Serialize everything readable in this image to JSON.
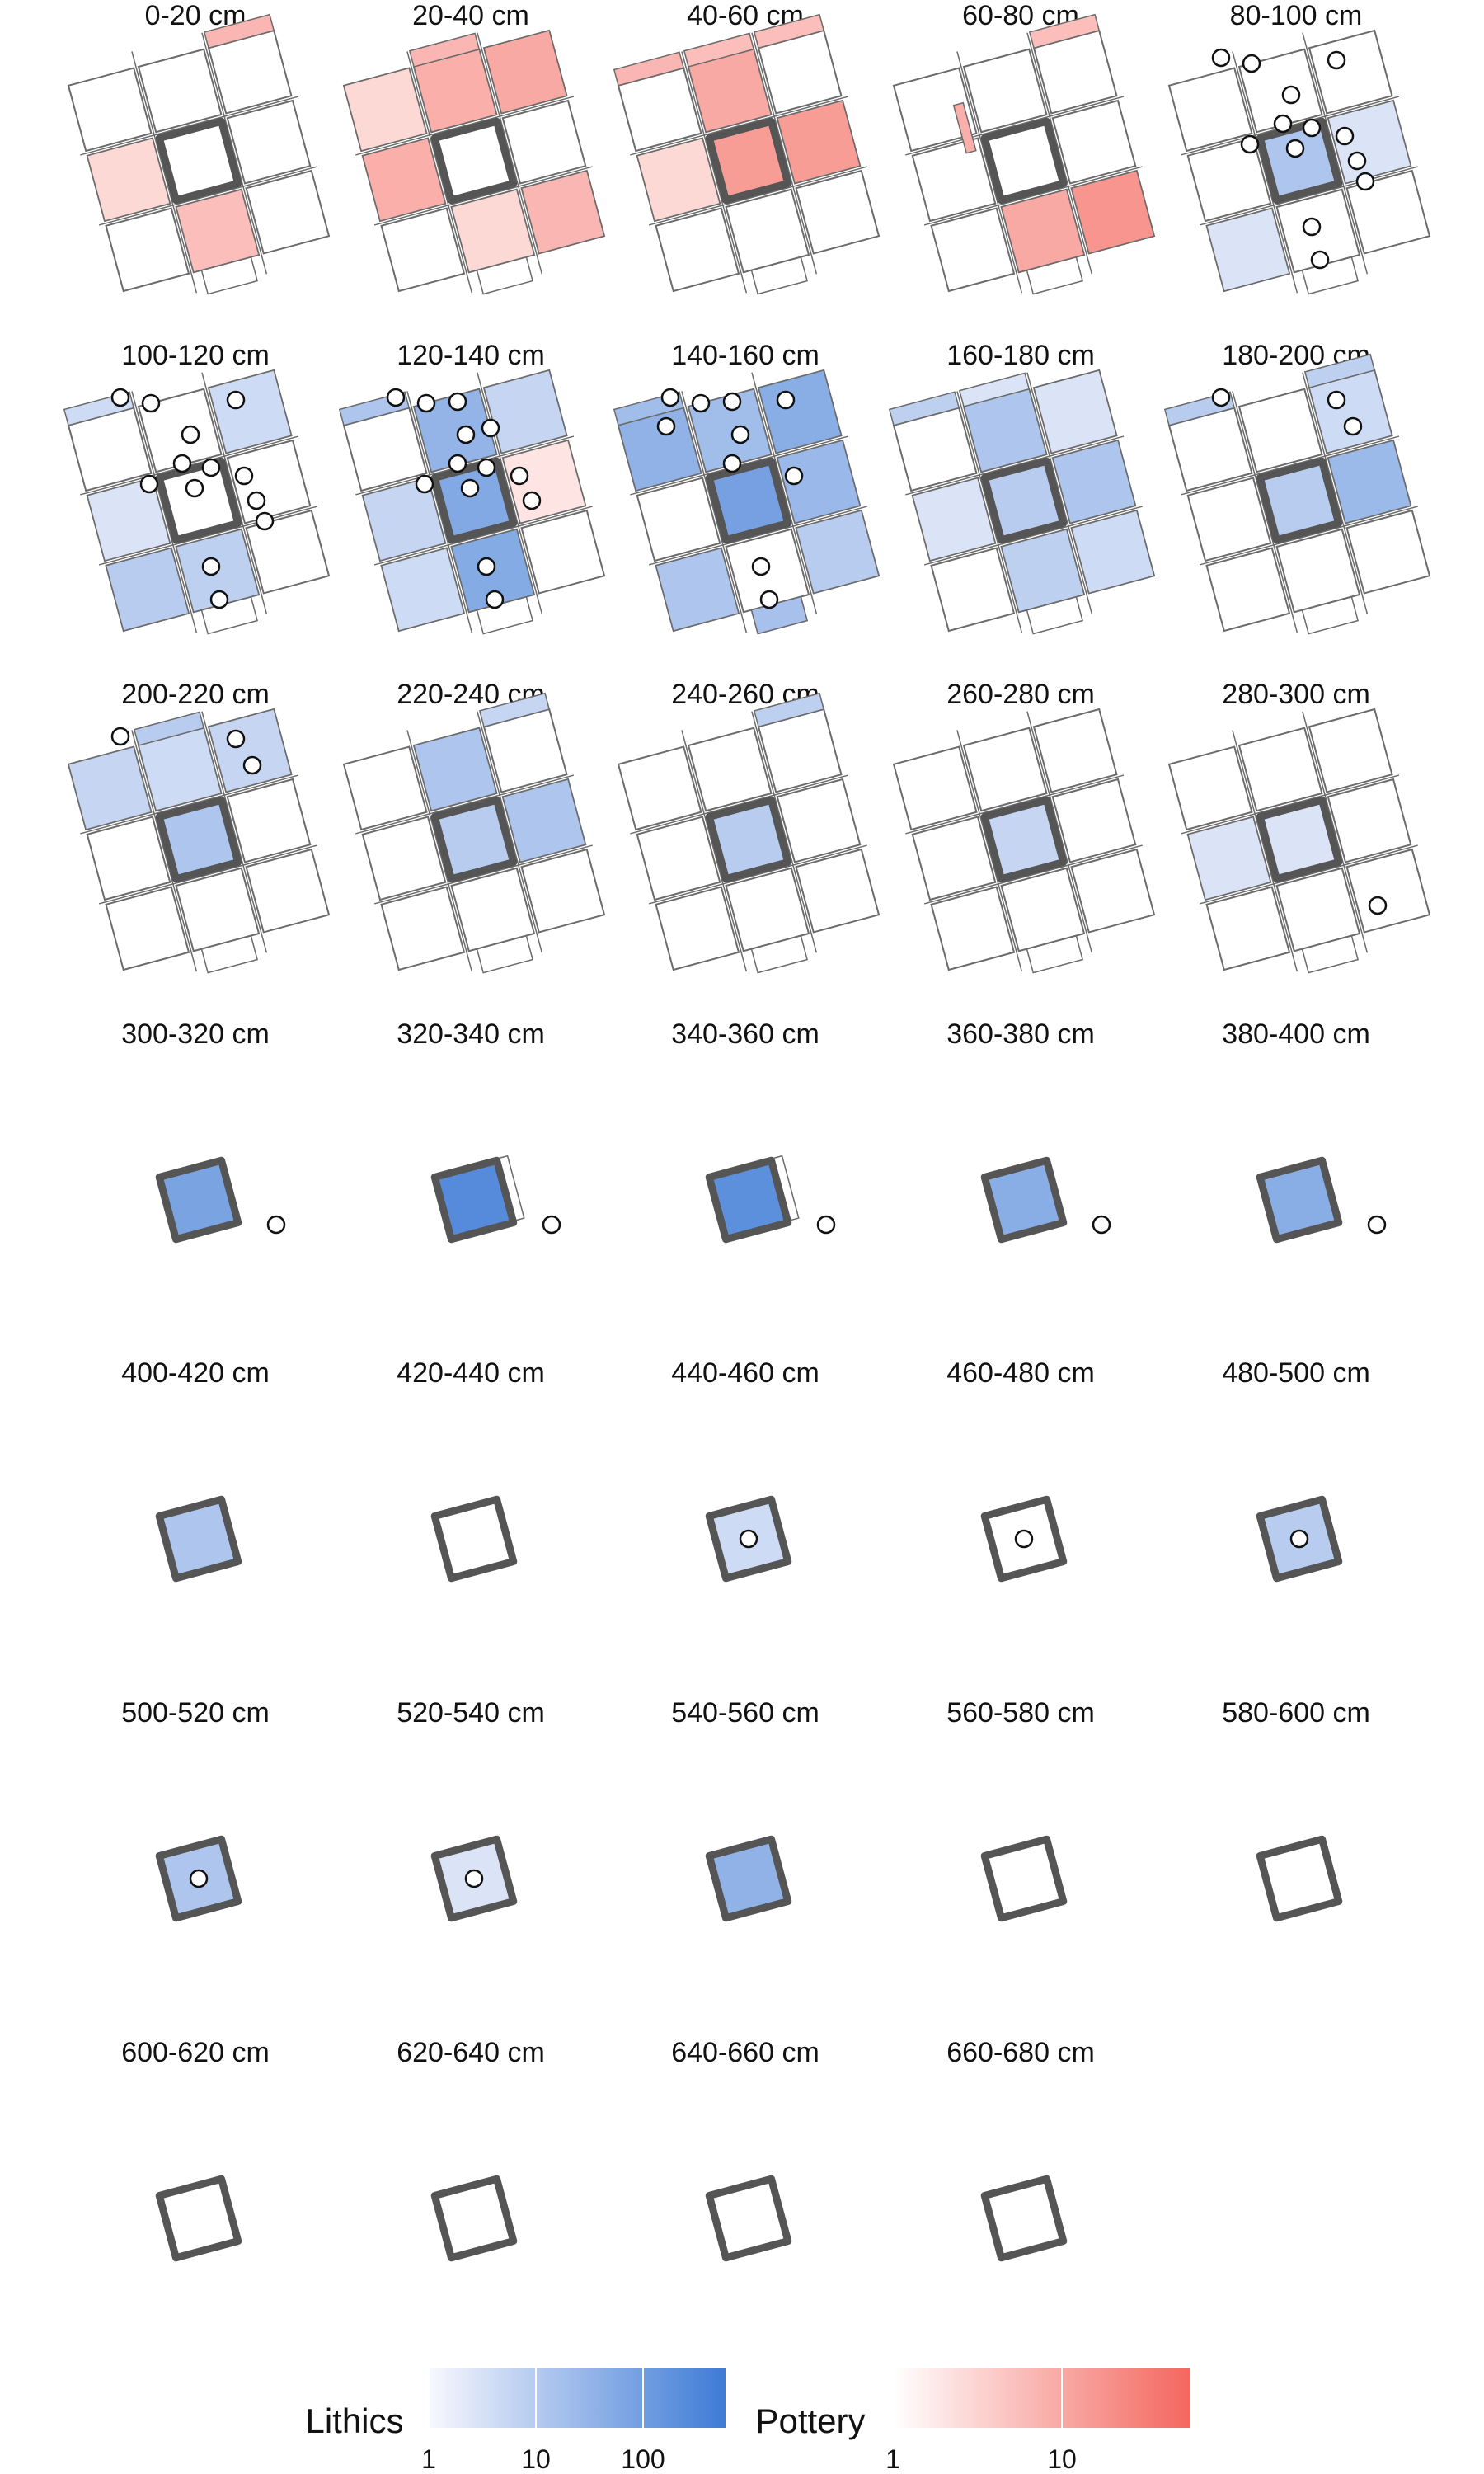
{
  "chart_data": {
    "type": "heatmap",
    "description_kind": "small multiples of excavation-unit maps by depth",
    "colors": {
      "lithics_low": "#f2f3fb",
      "lithics_high": "#3e7bd6",
      "pottery_low": "#fff3f2",
      "pottery_high": "#f4675f",
      "outline": "#6b6b6b",
      "center_outline": "#555555"
    },
    "units_legend": {
      "lithics": {
        "label": "Lithics",
        "ticks": [
          "1",
          "10",
          "100"
        ],
        "range_log10": [
          0,
          2.4
        ]
      },
      "pottery": {
        "label": "Pottery",
        "ticks": [
          "1",
          "10"
        ],
        "range_log10": [
          0,
          1.6
        ]
      }
    },
    "panels": [
      {
        "title": "0-20 cm",
        "show_grid": true,
        "cells": [
          {
            "pos": "center-left",
            "material": "pottery",
            "value": 2
          },
          {
            "pos": "bottom-center",
            "material": "pottery",
            "value": 4
          },
          {
            "pos": "top-right-strip",
            "material": "pottery",
            "value": 5
          }
        ],
        "points": []
      },
      {
        "title": "20-40 cm",
        "show_grid": true,
        "cells": [
          {
            "pos": "top-center",
            "material": "pottery",
            "value": 6
          },
          {
            "pos": "top-right",
            "material": "pottery",
            "value": 7
          },
          {
            "pos": "top-left",
            "material": "pottery",
            "value": 2
          },
          {
            "pos": "center-left",
            "material": "pottery",
            "value": 6
          },
          {
            "pos": "bottom-center",
            "material": "pottery",
            "value": 2
          },
          {
            "pos": "bottom-right",
            "material": "pottery",
            "value": 5
          },
          {
            "pos": "top-center-strip",
            "material": "pottery",
            "value": 5
          }
        ],
        "points": []
      },
      {
        "title": "40-60 cm",
        "show_grid": true,
        "cells": [
          {
            "pos": "top-left-strip",
            "material": "pottery",
            "value": 5
          },
          {
            "pos": "top-center-strip",
            "material": "pottery",
            "value": 4
          },
          {
            "pos": "top-right-strip",
            "material": "pottery",
            "value": 4
          },
          {
            "pos": "top-center",
            "material": "pottery",
            "value": 7
          },
          {
            "pos": "center",
            "material": "pottery",
            "value": 10
          },
          {
            "pos": "center-right",
            "material": "pottery",
            "value": 10
          },
          {
            "pos": "center-left",
            "material": "pottery",
            "value": 2
          }
        ],
        "points": []
      },
      {
        "title": "60-80 cm",
        "show_grid": true,
        "cells": [
          {
            "pos": "top-right-strip",
            "material": "pottery",
            "value": 4
          },
          {
            "pos": "bottom-center",
            "material": "pottery",
            "value": 7
          },
          {
            "pos": "bottom-right",
            "material": "pottery",
            "value": 12
          },
          {
            "pos": "left-vertical-strip",
            "material": "pottery",
            "value": 6
          }
        ],
        "points": []
      },
      {
        "title": "80-100 cm",
        "show_grid": true,
        "cells": [
          {
            "pos": "center",
            "material": "lithics",
            "value": 8
          },
          {
            "pos": "center-right",
            "material": "lithics",
            "value": 2
          },
          {
            "pos": "bottom-left",
            "material": "lithics",
            "value": 2
          }
        ],
        "points": [
          "top-left",
          "top-left",
          "top-center",
          "top-right",
          "center-left",
          "center",
          "center",
          "center",
          "center-right",
          "center-right",
          "center-right",
          "bottom-center",
          "bottom-center"
        ]
      },
      {
        "title": "100-120 cm",
        "show_grid": true,
        "cells": [
          {
            "pos": "top-left-strip",
            "material": "lithics",
            "value": 3
          },
          {
            "pos": "top-right",
            "material": "lithics",
            "value": 3
          },
          {
            "pos": "center-left",
            "material": "lithics",
            "value": 2
          },
          {
            "pos": "bottom-left",
            "material": "lithics",
            "value": 6
          },
          {
            "pos": "bottom-center",
            "material": "lithics",
            "value": 5
          }
        ],
        "points": [
          "top-left",
          "top-left",
          "top-center",
          "top-right",
          "center-left",
          "center",
          "center",
          "center",
          "center-right",
          "center-right",
          "center-right",
          "bottom-center",
          "bottom-center"
        ]
      },
      {
        "title": "120-140 cm",
        "show_grid": true,
        "cells": [
          {
            "pos": "top-left-strip",
            "material": "lithics",
            "value": 8
          },
          {
            "pos": "top-center",
            "material": "lithics",
            "value": 18
          },
          {
            "pos": "top-right",
            "material": "lithics",
            "value": 4
          },
          {
            "pos": "center",
            "material": "lithics",
            "value": 30
          },
          {
            "pos": "center-left",
            "material": "lithics",
            "value": 4
          },
          {
            "pos": "bottom-center",
            "material": "lithics",
            "value": 28
          },
          {
            "pos": "bottom-left",
            "material": "lithics",
            "value": 3
          },
          {
            "pos": "center-right",
            "material": "pottery",
            "value": 1.5
          }
        ],
        "points": [
          "top-left",
          "top-left",
          "top-left",
          "top-center",
          "top-center",
          "center-left",
          "center",
          "center",
          "center",
          "center-right",
          "center-right",
          "bottom-center",
          "bottom-center"
        ]
      },
      {
        "title": "140-160 cm",
        "show_grid": true,
        "cells": [
          {
            "pos": "top-left-strip",
            "material": "lithics",
            "value": 12
          },
          {
            "pos": "top-left",
            "material": "lithics",
            "value": 20
          },
          {
            "pos": "top-center",
            "material": "lithics",
            "value": 12
          },
          {
            "pos": "top-right",
            "material": "lithics",
            "value": 25
          },
          {
            "pos": "center",
            "material": "lithics",
            "value": 45
          },
          {
            "pos": "center-right",
            "material": "lithics",
            "value": 15
          },
          {
            "pos": "bottom-left",
            "material": "lithics",
            "value": 8
          },
          {
            "pos": "bottom-right",
            "material": "lithics",
            "value": 6
          },
          {
            "pos": "bottom-center-strip",
            "material": "lithics",
            "value": 10
          }
        ],
        "points": [
          "top-left",
          "top-left",
          "top-left",
          "top-left",
          "top-center",
          "top-right",
          "center",
          "center-right",
          "bottom-center",
          "bottom-center"
        ]
      },
      {
        "title": "160-180 cm",
        "show_grid": true,
        "cells": [
          {
            "pos": "top-left-strip",
            "material": "lithics",
            "value": 5
          },
          {
            "pos": "top-center-strip",
            "material": "lithics",
            "value": 2
          },
          {
            "pos": "top-center",
            "material": "lithics",
            "value": 8
          },
          {
            "pos": "top-right",
            "material": "lithics",
            "value": 2
          },
          {
            "pos": "center",
            "material": "lithics",
            "value": 6
          },
          {
            "pos": "center-left",
            "material": "lithics",
            "value": 2
          },
          {
            "pos": "center-right",
            "material": "lithics",
            "value": 8
          },
          {
            "pos": "bottom-center",
            "material": "lithics",
            "value": 5
          },
          {
            "pos": "bottom-right",
            "material": "lithics",
            "value": 3
          }
        ],
        "points": []
      },
      {
        "title": "180-200 cm",
        "show_grid": true,
        "cells": [
          {
            "pos": "top-left-strip",
            "material": "lithics",
            "value": 6
          },
          {
            "pos": "top-right-strip",
            "material": "lithics",
            "value": 5
          },
          {
            "pos": "top-right",
            "material": "lithics",
            "value": 3
          },
          {
            "pos": "center",
            "material": "lithics",
            "value": 6
          },
          {
            "pos": "center-right",
            "material": "lithics",
            "value": 14
          }
        ],
        "points": [
          "top-left",
          "top-right",
          "top-right"
        ]
      },
      {
        "title": "200-220 cm",
        "show_grid": true,
        "cells": [
          {
            "pos": "top-left",
            "material": "lithics",
            "value": 4
          },
          {
            "pos": "top-center",
            "material": "lithics",
            "value": 3
          },
          {
            "pos": "top-right",
            "material": "lithics",
            "value": 4
          },
          {
            "pos": "center",
            "material": "lithics",
            "value": 8
          },
          {
            "pos": "top-center-strip",
            "material": "lithics",
            "value": 6
          }
        ],
        "points": [
          "top-left",
          "top-right",
          "top-right"
        ]
      },
      {
        "title": "220-240 cm",
        "show_grid": true,
        "cells": [
          {
            "pos": "top-center",
            "material": "lithics",
            "value": 8
          },
          {
            "pos": "center",
            "material": "lithics",
            "value": 6
          },
          {
            "pos": "center-right",
            "material": "lithics",
            "value": 8
          },
          {
            "pos": "top-right-strip",
            "material": "lithics",
            "value": 4
          }
        ],
        "points": []
      },
      {
        "title": "240-260 cm",
        "show_grid": true,
        "cells": [
          {
            "pos": "top-right-strip",
            "material": "lithics",
            "value": 5
          },
          {
            "pos": "center",
            "material": "lithics",
            "value": 6
          }
        ],
        "points": []
      },
      {
        "title": "260-280 cm",
        "show_grid": true,
        "cells": [
          {
            "pos": "center",
            "material": "lithics",
            "value": 4
          }
        ],
        "points": []
      },
      {
        "title": "280-300 cm",
        "show_grid": true,
        "cells": [
          {
            "pos": "center",
            "material": "lithics",
            "value": 2
          },
          {
            "pos": "center-left",
            "material": "lithics",
            "value": 2
          }
        ],
        "points": [
          "bottom-right"
        ]
      },
      {
        "title": "300-320 cm",
        "show_grid": false,
        "center": {
          "material": "lithics",
          "value": 40
        },
        "extra_outline": false,
        "points": [
          "outside-right"
        ]
      },
      {
        "title": "320-340 cm",
        "show_grid": false,
        "center": {
          "material": "lithics",
          "value": 120
        },
        "extra_outline": true,
        "points": [
          "outside-right"
        ]
      },
      {
        "title": "340-360 cm",
        "show_grid": false,
        "center": {
          "material": "lithics",
          "value": 100
        },
        "extra_outline": true,
        "points": [
          "outside-right"
        ]
      },
      {
        "title": "360-380 cm",
        "show_grid": false,
        "center": {
          "material": "lithics",
          "value": 25
        },
        "extra_outline": false,
        "points": [
          "outside-right"
        ]
      },
      {
        "title": "380-400 cm",
        "show_grid": false,
        "center": {
          "material": "lithics",
          "value": 25
        },
        "extra_outline": false,
        "points": [
          "outside-right"
        ]
      },
      {
        "title": "400-420 cm",
        "show_grid": false,
        "center": {
          "material": "lithics",
          "value": 8
        },
        "extra_outline": false,
        "points": []
      },
      {
        "title": "420-440 cm",
        "show_grid": false,
        "center": null,
        "extra_outline": false,
        "points": []
      },
      {
        "title": "440-460 cm",
        "show_grid": false,
        "center": {
          "material": "lithics",
          "value": 3
        },
        "extra_outline": false,
        "points": [
          "center"
        ]
      },
      {
        "title": "460-480 cm",
        "show_grid": false,
        "center": null,
        "extra_outline": false,
        "points": [
          "center"
        ]
      },
      {
        "title": "480-500 cm",
        "show_grid": false,
        "center": {
          "material": "lithics",
          "value": 6
        },
        "extra_outline": false,
        "points": [
          "center"
        ]
      },
      {
        "title": "500-520 cm",
        "show_grid": false,
        "center": {
          "material": "lithics",
          "value": 8
        },
        "extra_outline": false,
        "points": [
          "center"
        ]
      },
      {
        "title": "520-540 cm",
        "show_grid": false,
        "center": {
          "material": "lithics",
          "value": 2
        },
        "extra_outline": false,
        "points": [
          "center"
        ]
      },
      {
        "title": "540-560 cm",
        "show_grid": false,
        "center": {
          "material": "lithics",
          "value": 20
        },
        "extra_outline": false,
        "points": []
      },
      {
        "title": "560-580 cm",
        "show_grid": false,
        "center": null,
        "extra_outline": false,
        "points": []
      },
      {
        "title": "580-600 cm",
        "show_grid": false,
        "center": null,
        "extra_outline": false,
        "points": []
      },
      {
        "title": "600-620 cm",
        "show_grid": false,
        "center": null,
        "extra_outline": false,
        "points": []
      },
      {
        "title": "620-640 cm",
        "show_grid": false,
        "center": null,
        "extra_outline": false,
        "points": []
      },
      {
        "title": "640-660 cm",
        "show_grid": false,
        "center": null,
        "extra_outline": false,
        "points": []
      },
      {
        "title": "660-680 cm",
        "show_grid": false,
        "center": null,
        "extra_outline": false,
        "points": []
      }
    ]
  }
}
